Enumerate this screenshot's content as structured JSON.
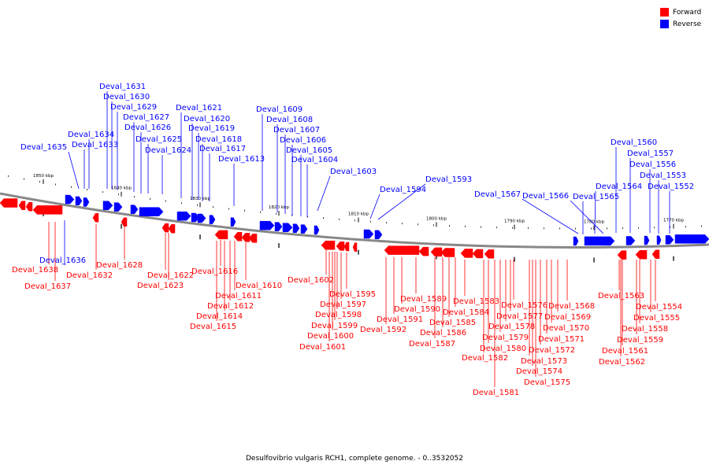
{
  "legend": {
    "forward_label": "Forward",
    "reverse_label": "Reverse",
    "forward_color": "#ff0000",
    "reverse_color": "#0000ff"
  },
  "caption": "Desulfovibrio vulgaris RCH1, complete genome. - 0..3532052",
  "axis": {
    "ticks": [
      {
        "label": "1850 kbp"
      },
      {
        "label": "1840 kbp"
      },
      {
        "label": "1830 kbp"
      },
      {
        "label": "1820 kbp"
      },
      {
        "label": "1810 kbp"
      },
      {
        "label": "1800 kbp"
      },
      {
        "label": "1790 kbp"
      },
      {
        "label": "1780 kbp"
      },
      {
        "label": "1770 kbp"
      }
    ]
  },
  "genes": {
    "reverse": [
      "Deval_1635",
      "Deval_1634",
      "Deval_1633",
      "Deval_1631",
      "Deval_1630",
      "Deval_1629",
      "Deval_1627",
      "Deval_1626",
      "Deval_1625",
      "Deval_1624",
      "Deval_1621",
      "Deval_1620",
      "Deval_1619",
      "Deval_1618",
      "Deval_1617",
      "Deval_1613",
      "Deval_1609",
      "Deval_1608",
      "Deval_1607",
      "Deval_1606",
      "Deval_1605",
      "Deval_1604",
      "Deval_1603",
      "Deval_1594",
      "Deval_1593",
      "Deval_1567",
      "Deval_1566",
      "Deval_1565",
      "Deval_1564",
      "Deval_1560",
      "Deval_1557",
      "Deval_1556",
      "Deval_1553",
      "Deval_1552",
      "Deval_1636"
    ],
    "forward": [
      "Deval_1638",
      "Deval_1637",
      "Deval_1632",
      "Deval_1628",
      "Deval_1622",
      "Deval_1623",
      "Deval_1616",
      "Deval_1611",
      "Deval_1612",
      "Deval_1614",
      "Deval_1615",
      "Deval_1610",
      "Deval_1602",
      "Deval_1595",
      "Deval_1597",
      "Deval_1598",
      "Deval_1599",
      "Deval_1600",
      "Deval_1601",
      "Deval_1592",
      "Deval_1591",
      "Deval_1590",
      "Deval_1589",
      "Deval_1587",
      "Deval_1586",
      "Deval_1585",
      "Deval_1584",
      "Deval_1583",
      "Deval_1582",
      "Deval_1581",
      "Deval_1580",
      "Deval_1579",
      "Deval_1578",
      "Deval_1577",
      "Deval_1576",
      "Deval_1575",
      "Deval_1574",
      "Deval_1573",
      "Deval_1572",
      "Deval_1571",
      "Deval_1570",
      "Deval_1569",
      "Deval_1568",
      "Deval_1563",
      "Deval_1562",
      "Deval_1561",
      "Deval_1559",
      "Deval_1558",
      "Deval_1555",
      "Deval_1554"
    ]
  }
}
